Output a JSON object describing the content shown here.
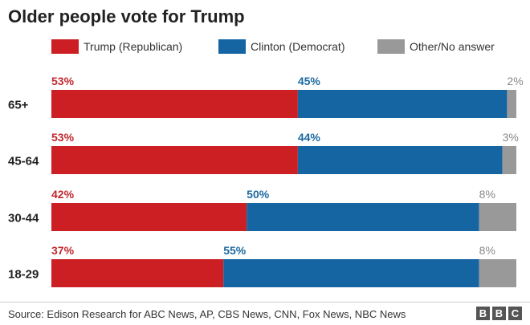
{
  "title": "Older people vote for Trump",
  "colors": {
    "trump": "#cc1f24",
    "clinton": "#1565a3",
    "other": "#999999",
    "trump_label": "#c2272d",
    "clinton_label": "#1d69a0",
    "other_label": "#888888",
    "axis_label": "#222222"
  },
  "legend": [
    {
      "label": "Trump (Republican)",
      "color": "#cc1f24"
    },
    {
      "label": "Clinton (Democrat)",
      "color": "#1565a3"
    },
    {
      "label": "Other/No answer",
      "color": "#999999"
    }
  ],
  "chart_data": {
    "type": "bar",
    "orientation": "horizontal",
    "stacked": true,
    "title": "Older people vote for Trump",
    "categories": [
      "65+",
      "45-64",
      "30-44",
      "18-29"
    ],
    "series": [
      {
        "name": "Trump (Republican)",
        "values": [
          53,
          53,
          42,
          37
        ],
        "labels": [
          "53%",
          "53%",
          "42%",
          "37%"
        ]
      },
      {
        "name": "Clinton (Democrat)",
        "values": [
          45,
          44,
          50,
          55
        ],
        "labels": [
          "45%",
          "44%",
          "50%",
          "55%"
        ]
      },
      {
        "name": "Other/No answer",
        "values": [
          2,
          3,
          8,
          8
        ],
        "labels": [
          "2%",
          "3%",
          "8%",
          "8%"
        ]
      }
    ],
    "xlim": [
      0,
      100
    ],
    "xlabel": "",
    "ylabel": "",
    "legend_position": "top"
  },
  "source": "Source: Edison Research for ABC News, AP, CBS News, CNN, Fox News, NBC News",
  "logo": [
    "B",
    "B",
    "C"
  ]
}
